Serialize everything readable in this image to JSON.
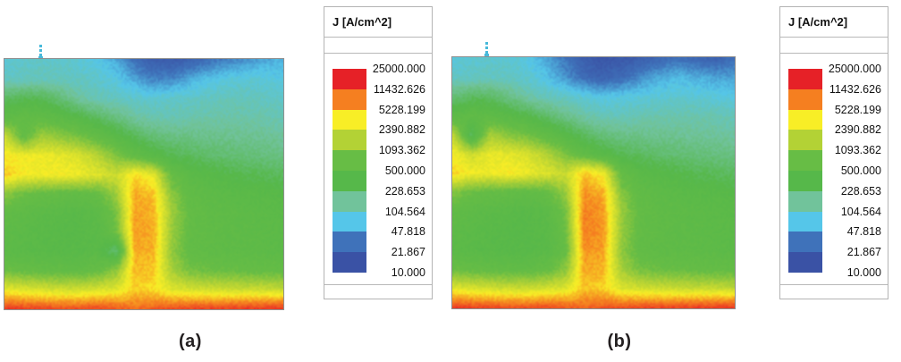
{
  "figure": {
    "captions": {
      "a": "(a)",
      "b": "(b)"
    }
  },
  "legend": {
    "title": "J [A/cm^2]",
    "labels": [
      "25000.000",
      "11432.626",
      "5228.199",
      "2390.882",
      "1093.362",
      "500.000",
      "228.653",
      "104.564",
      "47.818",
      "21.867",
      "10.000"
    ],
    "band_colors_top_to_bottom": [
      "#e62127",
      "#f57f20",
      "#f8ee26",
      "#b3d235",
      "#67bd45",
      "#56b84a",
      "#71c39b",
      "#55c6e9",
      "#3f72ba",
      "#3a52a5"
    ]
  },
  "chart_data": [
    {
      "type": "heatmap",
      "panel": "(a)",
      "title": "J [A/cm^2]",
      "units": "A/cm^2",
      "scale": "log",
      "levels": [
        10.0,
        21.867,
        47.818,
        104.564,
        228.653,
        500.0,
        1093.362,
        2390.882,
        5228.199,
        11432.626,
        25000.0
      ],
      "colors_low_to_high": [
        "#3a52a5",
        "#3f72ba",
        "#55c6e9",
        "#71c39b",
        "#56b84a",
        "#67bd45",
        "#b3d235",
        "#f8ee26",
        "#f57f20",
        "#e62127"
      ],
      "legend_position": "right",
      "grid_values": [
        [
          75,
          78,
          82,
          80,
          72,
          60,
          42,
          22,
          14,
          13,
          16,
          22,
          28,
          33,
          40,
          48
        ],
        [
          88,
          92,
          95,
          92,
          86,
          78,
          62,
          40,
          28,
          30,
          42,
          55,
          65,
          72,
          70,
          62
        ],
        [
          250,
          300,
          280,
          200,
          130,
          100,
          90,
          80,
          75,
          80,
          85,
          90,
          95,
          95,
          90,
          85
        ],
        [
          500,
          600,
          550,
          450,
          350,
          250,
          180,
          130,
          110,
          105,
          110,
          115,
          118,
          115,
          110,
          100
        ],
        [
          2500,
          600,
          1500,
          1200,
          900,
          600,
          400,
          280,
          200,
          180,
          170,
          160,
          155,
          150,
          145,
          135
        ],
        [
          4500,
          4000,
          3800,
          3500,
          3000,
          2000,
          1000,
          600,
          400,
          300,
          260,
          230,
          210,
          195,
          185,
          175
        ],
        [
          6000,
          4200,
          4000,
          4200,
          3800,
          3200,
          2500,
          5000,
          3500,
          700,
          450,
          380,
          330,
          300,
          280,
          260
        ],
        [
          1200,
          800,
          700,
          650,
          600,
          700,
          1500,
          7500,
          6000,
          1200,
          600,
          500,
          450,
          420,
          400,
          380
        ],
        [
          600,
          500,
          450,
          420,
          400,
          450,
          900,
          8000,
          7000,
          1500,
          650,
          550,
          500,
          480,
          460,
          440
        ],
        [
          500,
          450,
          400,
          380,
          380,
          420,
          800,
          8200,
          7500,
          1400,
          650,
          560,
          520,
          500,
          480,
          460
        ],
        [
          450,
          420,
          400,
          380,
          380,
          420,
          200,
          7500,
          7000,
          1300,
          620,
          550,
          520,
          500,
          480,
          460
        ],
        [
          800,
          700,
          650,
          600,
          600,
          700,
          1200,
          6500,
          6000,
          1600,
          900,
          800,
          750,
          700,
          680,
          650
        ],
        [
          3500,
          3000,
          2800,
          2600,
          2600,
          2800,
          3200,
          5500,
          5000,
          3200,
          2800,
          2600,
          2500,
          2400,
          2400,
          2300
        ],
        [
          20000,
          18000,
          17000,
          16000,
          16000,
          17000,
          15000,
          12000,
          14000,
          16000,
          17000,
          18000,
          18000,
          19000,
          19000,
          20000
        ]
      ]
    },
    {
      "type": "heatmap",
      "panel": "(b)",
      "title": "J [A/cm^2]",
      "units": "A/cm^2",
      "scale": "log",
      "levels": [
        10.0,
        21.867,
        47.818,
        104.564,
        228.653,
        500.0,
        1093.362,
        2390.882,
        5228.199,
        11432.626,
        25000.0
      ],
      "colors_low_to_high": [
        "#3a52a5",
        "#3f72ba",
        "#55c6e9",
        "#71c39b",
        "#56b84a",
        "#67bd45",
        "#b3d235",
        "#f8ee26",
        "#f57f20",
        "#e62127"
      ],
      "legend_position": "right",
      "grid_values": [
        [
          70,
          72,
          76,
          74,
          62,
          40,
          24,
          14,
          11,
          12,
          14,
          18,
          22,
          18,
          15,
          22
        ],
        [
          84,
          88,
          90,
          86,
          74,
          55,
          34,
          20,
          16,
          20,
          30,
          42,
          50,
          45,
          40,
          38
        ],
        [
          200,
          260,
          240,
          170,
          120,
          95,
          85,
          70,
          60,
          62,
          68,
          72,
          75,
          72,
          68,
          64
        ],
        [
          450,
          550,
          500,
          400,
          320,
          230,
          160,
          120,
          100,
          98,
          104,
          108,
          110,
          108,
          104,
          95
        ],
        [
          2200,
          250,
          1600,
          1100,
          850,
          550,
          380,
          260,
          190,
          170,
          160,
          152,
          148,
          140,
          135,
          128
        ],
        [
          4200,
          2500,
          3600,
          3400,
          2900,
          1900,
          950,
          550,
          380,
          290,
          250,
          225,
          205,
          190,
          182,
          172
        ],
        [
          5500,
          4000,
          3900,
          4500,
          3700,
          3100,
          2400,
          6000,
          4000,
          650,
          430,
          370,
          325,
          290,
          270,
          250
        ],
        [
          1100,
          750,
          680,
          640,
          580,
          680,
          1400,
          9000,
          7000,
          1100,
          580,
          490,
          440,
          410,
          390,
          370
        ],
        [
          580,
          480,
          440,
          410,
          390,
          440,
          850,
          10500,
          8500,
          1400,
          630,
          540,
          490,
          470,
          450,
          430
        ],
        [
          490,
          440,
          390,
          370,
          370,
          410,
          780,
          10500,
          9000,
          1350,
          640,
          550,
          510,
          490,
          470,
          450
        ],
        [
          440,
          410,
          390,
          370,
          370,
          410,
          680,
          9000,
          8000,
          1250,
          610,
          540,
          510,
          490,
          470,
          450
        ],
        [
          780,
          680,
          640,
          590,
          590,
          680,
          1150,
          7500,
          7000,
          1550,
          880,
          780,
          730,
          680,
          660,
          630
        ],
        [
          3400,
          2900,
          2700,
          2500,
          2500,
          2700,
          3100,
          6000,
          5500,
          3100,
          2700,
          2500,
          2400,
          2300,
          2300,
          2200
        ],
        [
          20000,
          18000,
          17000,
          16000,
          16000,
          17000,
          15000,
          13000,
          15000,
          16000,
          17000,
          18000,
          18000,
          19000,
          19000,
          20000
        ]
      ]
    }
  ]
}
